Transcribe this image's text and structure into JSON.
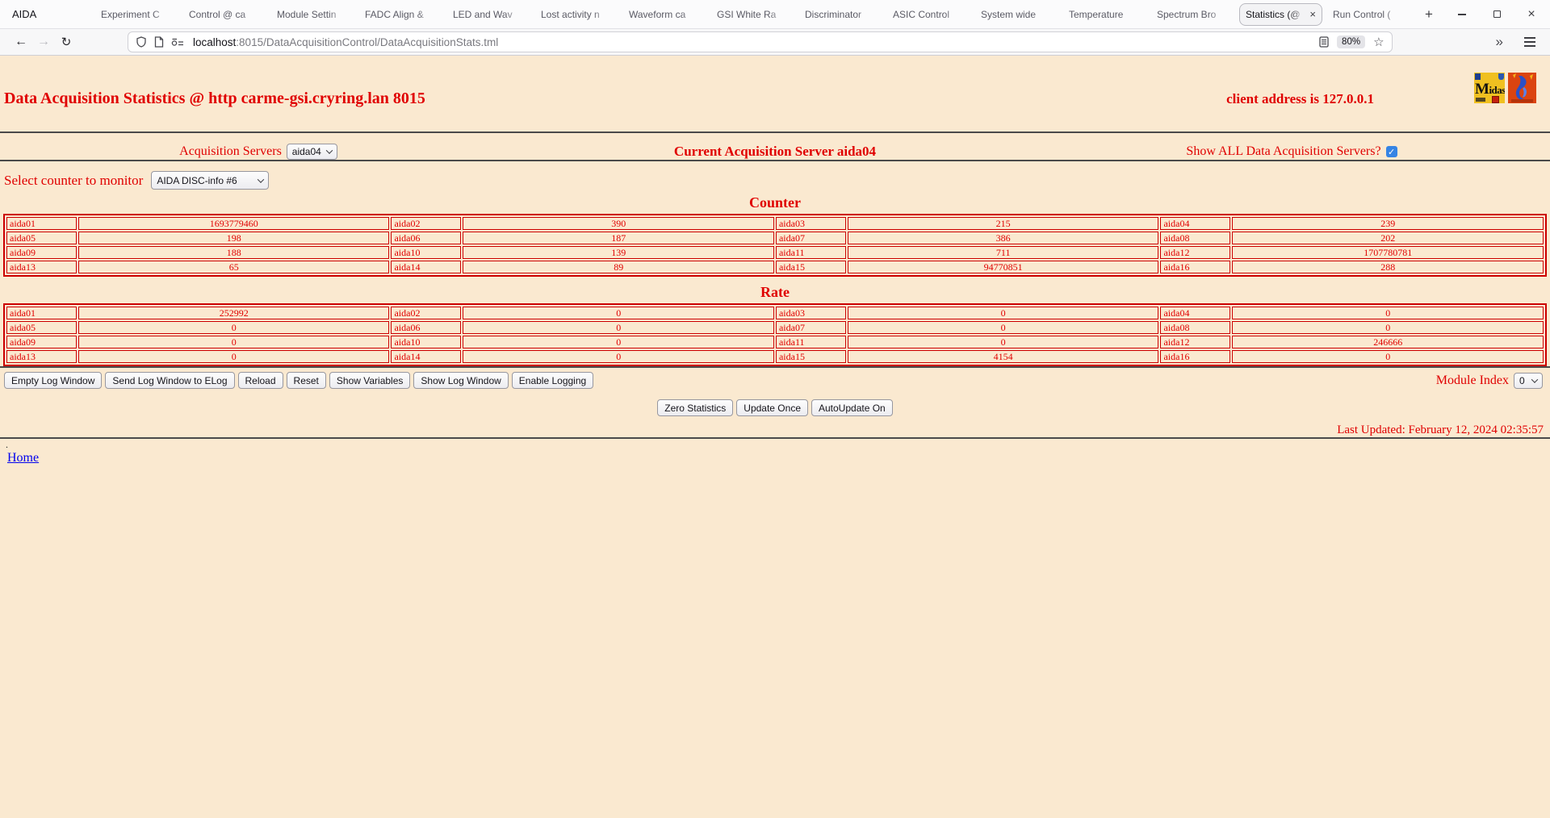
{
  "colors": {
    "page_bg": "#FAE9D0",
    "red": "#E00000",
    "table_border": "#CC0000",
    "link": "#0000EE",
    "accent_blue": "#3584E4"
  },
  "icons": {
    "close": "×",
    "new_tab": "+",
    "back": "←",
    "forward": "→",
    "reload": "↻",
    "star": "☆",
    "overflow": "»",
    "check": "✓"
  },
  "window": {
    "app_title": "AIDA",
    "tabs": [
      {
        "label": "Experiment C"
      },
      {
        "label": "Control @ ca"
      },
      {
        "label": "Module Settin"
      },
      {
        "label": "FADC Align &"
      },
      {
        "label": "LED and Wav"
      },
      {
        "label": "Lost activity n"
      },
      {
        "label": "Waveform ca"
      },
      {
        "label": "GSI White Ra"
      },
      {
        "label": "Discriminator"
      },
      {
        "label": "ASIC Control"
      },
      {
        "label": "System wide"
      },
      {
        "label": "Temperature"
      },
      {
        "label": "Spectrum Bro"
      },
      {
        "label": "Statistics (@",
        "active": true
      },
      {
        "label": "Run Control ("
      }
    ]
  },
  "browser": {
    "url_domain": "localhost",
    "url_path": ":8015/DataAcquisitionControl/DataAcquisitionStats.tml",
    "zoom_badge": "80%"
  },
  "page": {
    "title": "Data Acquisition Statistics @ http carme-gsi.cryring.lan 8015",
    "client_address": "client address is 127.0.0.1",
    "midas_logo_text": "Midas",
    "acquisition_servers_label": "Acquisition Servers",
    "acquisition_servers_selected": "aida04",
    "current_server": "Current Acquisition Server aida04",
    "show_all_label": "Show ALL Data Acquisition Servers?",
    "show_all_checked": true,
    "counter_select_label": "Select counter to monitor",
    "counter_select_selected": "AIDA DISC-info #6",
    "counter_heading": "Counter",
    "rate_heading": "Rate",
    "counter_cells": [
      [
        "aida01",
        "1693779460"
      ],
      [
        "aida02",
        "390"
      ],
      [
        "aida03",
        "215"
      ],
      [
        "aida04",
        "239"
      ],
      [
        "aida05",
        "198"
      ],
      [
        "aida06",
        "187"
      ],
      [
        "aida07",
        "386"
      ],
      [
        "aida08",
        "202"
      ],
      [
        "aida09",
        "188"
      ],
      [
        "aida10",
        "139"
      ],
      [
        "aida11",
        "711"
      ],
      [
        "aida12",
        "1707780781"
      ],
      [
        "aida13",
        "65"
      ],
      [
        "aida14",
        "89"
      ],
      [
        "aida15",
        "94770851"
      ],
      [
        "aida16",
        "288"
      ]
    ],
    "rate_cells": [
      [
        "aida01",
        "252992"
      ],
      [
        "aida02",
        "0"
      ],
      [
        "aida03",
        "0"
      ],
      [
        "aida04",
        "0"
      ],
      [
        "aida05",
        "0"
      ],
      [
        "aida06",
        "0"
      ],
      [
        "aida07",
        "0"
      ],
      [
        "aida08",
        "0"
      ],
      [
        "aida09",
        "0"
      ],
      [
        "aida10",
        "0"
      ],
      [
        "aida11",
        "0"
      ],
      [
        "aida12",
        "246666"
      ],
      [
        "aida13",
        "0"
      ],
      [
        "aida14",
        "0"
      ],
      [
        "aida15",
        "4154"
      ],
      [
        "aida16",
        "0"
      ]
    ],
    "log_buttons": [
      "Empty Log Window",
      "Send Log Window to ELog",
      "Reload",
      "Reset",
      "Show Variables",
      "Show Log Window",
      "Enable Logging"
    ],
    "module_index_label": "Module Index",
    "module_index_selected": "0",
    "stat_buttons": [
      "Zero Statistics",
      "Update Once",
      "AutoUpdate On"
    ],
    "last_updated": "Last Updated: February 12, 2024 02:35:57",
    "footer_dot": ".",
    "home_link": "Home"
  }
}
